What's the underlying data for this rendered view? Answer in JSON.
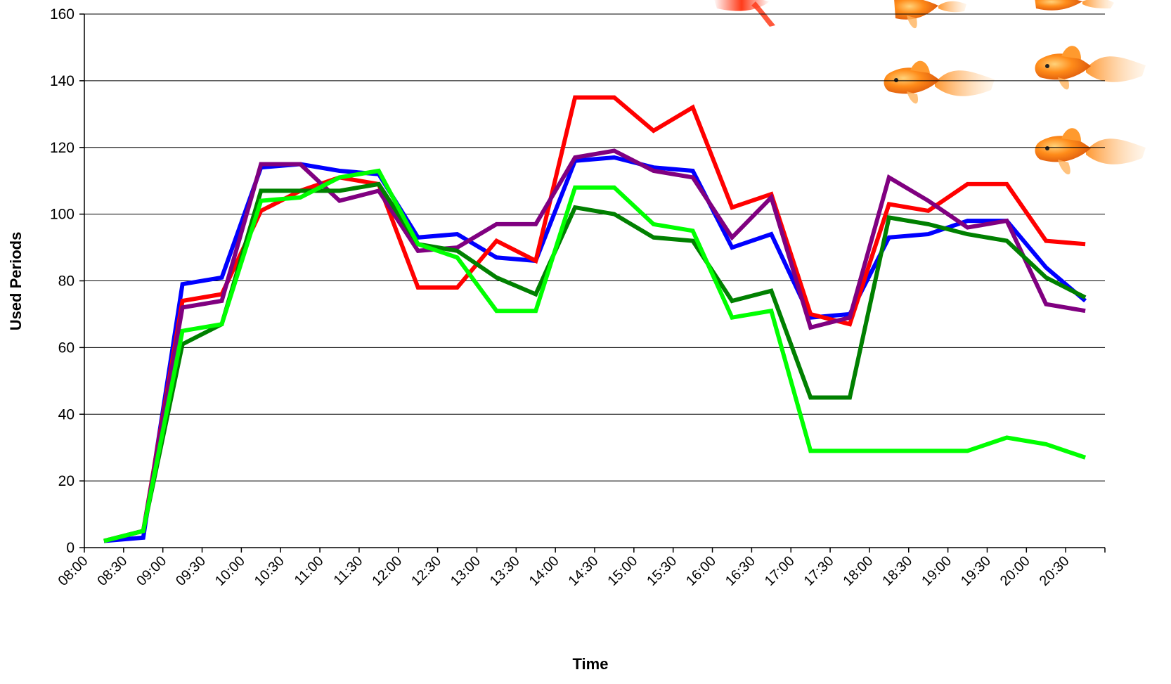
{
  "chart_data": {
    "type": "line",
    "title": "",
    "xlabel": "Time",
    "ylabel": "Used Periods",
    "ylim": [
      0,
      160
    ],
    "yticks": [
      "0",
      "20",
      "40",
      "60",
      "80",
      "100",
      "120",
      "140",
      "160"
    ],
    "x_tick_labels": [
      "08:00",
      "08:30",
      "09:00",
      "09:30",
      "10:00",
      "10:30",
      "11:00",
      "11:30",
      "12:00",
      "12:30",
      "13:00",
      "13:30",
      "14:00",
      "14:30",
      "15:00",
      "15:30",
      "16:00",
      "16:30",
      "17:00",
      "17:30",
      "18:00",
      "18:30",
      "19:00",
      "19:30",
      "20:00",
      "20:30"
    ],
    "x": [
      "08:15",
      "08:45",
      "09:15",
      "09:45",
      "10:15",
      "10:45",
      "11:15",
      "11:45",
      "12:15",
      "12:45",
      "13:15",
      "13:45",
      "14:15",
      "14:45",
      "15:15",
      "15:45",
      "16:15",
      "16:45",
      "17:15",
      "17:45",
      "18:15",
      "18:45",
      "19:15",
      "19:45",
      "20:15",
      "20:45"
    ],
    "grid": "horizontal",
    "legend": "none",
    "decoration": "goldfish-images",
    "series": [
      {
        "color": "#0000ff",
        "values": [
          2,
          3,
          79,
          81,
          114,
          115,
          113,
          112,
          93,
          94,
          87,
          86,
          116,
          117,
          114,
          113,
          90,
          94,
          69,
          70,
          93,
          94,
          98,
          98,
          84,
          74
        ]
      },
      {
        "color": "#ff0000",
        "values": [
          2,
          5,
          74,
          76,
          101,
          107,
          111,
          109,
          78,
          78,
          92,
          86,
          135,
          135,
          125,
          132,
          102,
          106,
          70,
          67,
          103,
          101,
          109,
          109,
          92,
          91
        ]
      },
      {
        "color": "#800080",
        "values": [
          2,
          5,
          72,
          74,
          115,
          115,
          104,
          107,
          89,
          90,
          97,
          97,
          117,
          119,
          113,
          111,
          93,
          105,
          66,
          69,
          111,
          104,
          96,
          98,
          73,
          71
        ]
      },
      {
        "color": "#008000",
        "values": [
          2,
          5,
          61,
          67,
          107,
          107,
          107,
          109,
          91,
          89,
          81,
          76,
          102,
          100,
          93,
          92,
          74,
          77,
          45,
          45,
          99,
          97,
          94,
          92,
          81,
          75
        ]
      },
      {
        "color": "#00ff00",
        "values": [
          2,
          5,
          65,
          67,
          104,
          105,
          111,
          113,
          91,
          87,
          71,
          71,
          108,
          108,
          97,
          95,
          69,
          71,
          29,
          29,
          29,
          29,
          29,
          33,
          31,
          27
        ]
      }
    ]
  }
}
